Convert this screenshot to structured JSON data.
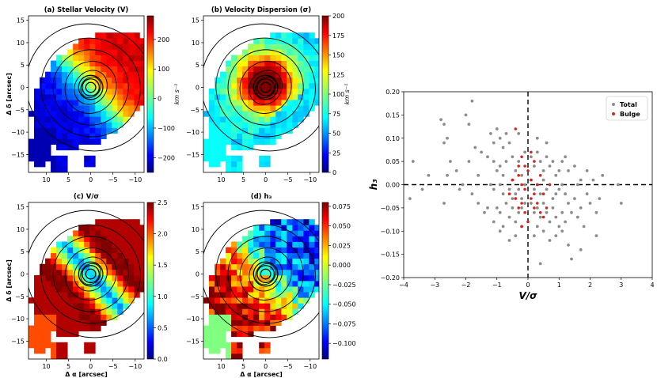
{
  "chart_data": [
    {
      "type": "heatmap",
      "title": "(a) Stellar Velocity (V)",
      "xlabel": "",
      "ylabel": "Δ δ [arcsec]",
      "xlim": [
        14,
        -12
      ],
      "ylim": [
        -19,
        16
      ],
      "xticks": [
        10,
        5,
        0,
        -5,
        -10
      ],
      "yticks": [
        15,
        10,
        5,
        0,
        -5,
        -10,
        -15
      ],
      "colormap": "jet",
      "colorbar": {
        "min": -250,
        "max": 280,
        "ticks": [
          200,
          100,
          0,
          -100,
          -200
        ],
        "label": "km s⁻¹"
      }
    },
    {
      "type": "heatmap",
      "title": "(b) Velocity Dispersion (σ)",
      "xlabel": "",
      "ylabel": "",
      "xlim": [
        14,
        -12
      ],
      "ylim": [
        -19,
        16
      ],
      "xticks": [
        10,
        5,
        0,
        -5,
        -10
      ],
      "yticks": [
        15,
        10,
        5,
        0,
        -5,
        -10,
        -15
      ],
      "colormap": "jet",
      "colorbar": {
        "min": 0,
        "max": 200,
        "ticks": [
          200,
          175,
          150,
          125,
          100,
          75,
          50,
          25,
          0
        ],
        "label": "km s⁻¹"
      }
    },
    {
      "type": "heatmap",
      "title": "(c) V/σ",
      "xlabel": "Δ α [arcsec]",
      "ylabel": "Δ δ [arcsec]",
      "xlim": [
        14,
        -12
      ],
      "ylim": [
        -19,
        16
      ],
      "xticks": [
        10,
        5,
        0,
        -5,
        -10
      ],
      "yticks": [
        15,
        10,
        5,
        0,
        -5,
        -10,
        -15
      ],
      "colormap": "jet",
      "colorbar": {
        "min": 0,
        "max": 2.5,
        "ticks": [
          "2.5",
          "2.0",
          "1.5",
          "1.0",
          "0.5",
          "0.0"
        ],
        "label": ""
      }
    },
    {
      "type": "heatmap",
      "title": "(d) h₃",
      "xlabel": "Δ α [arcsec]",
      "ylabel": "",
      "xlim": [
        14,
        -12
      ],
      "ylim": [
        -19,
        16
      ],
      "xticks": [
        10,
        5,
        0,
        -5,
        -10
      ],
      "yticks": [
        15,
        10,
        5,
        0,
        -5,
        -10,
        -15
      ],
      "colormap": "jet",
      "colorbar": {
        "min": -0.12,
        "max": 0.08,
        "ticks": [
          "0.075",
          "0.050",
          "0.025",
          "0.000",
          "−0.025",
          "−0.050",
          "−0.075",
          "−0.100"
        ],
        "label": ""
      }
    },
    {
      "type": "scatter",
      "title": "",
      "xlabel": "V/σ",
      "ylabel": "h₃",
      "xlim": [
        -4,
        4
      ],
      "ylim": [
        -0.2,
        0.2
      ],
      "xticks": [
        "−4",
        "−3",
        "−2",
        "−1",
        "0",
        "1",
        "2",
        "3",
        "4"
      ],
      "yticks": [
        "0.20",
        "0.15",
        "0.10",
        "0.05",
        "0.00",
        "−0.05",
        "−0.10",
        "−0.15",
        "−0.20"
      ],
      "reference_lines": {
        "x": 0,
        "y": 0
      },
      "legend": {
        "position": "top-right",
        "entries": [
          "Total",
          "Bulge"
        ]
      },
      "series": [
        {
          "name": "Total",
          "color": "#8c8c8c",
          "points": [
            [
              -3.7,
              0.05
            ],
            [
              -3.8,
              -0.03
            ],
            [
              -3.4,
              -0.01
            ],
            [
              -2.8,
              0.14
            ],
            [
              -2.7,
              0.13
            ],
            [
              -2.6,
              0.1
            ],
            [
              -2.7,
              0.09
            ],
            [
              -2.5,
              0.05
            ],
            [
              -2.6,
              0.02
            ],
            [
              -2.7,
              -0.04
            ],
            [
              -2.0,
              0.15
            ],
            [
              -1.8,
              0.18
            ],
            [
              -1.9,
              0.13
            ],
            [
              -1.7,
              0.08
            ],
            [
              -1.9,
              0.05
            ],
            [
              -1.6,
              0.02
            ],
            [
              -2.1,
              0.0
            ],
            [
              -1.8,
              -0.02
            ],
            [
              -1.6,
              -0.04
            ],
            [
              -1.2,
              0.11
            ],
            [
              -1.1,
              0.09
            ],
            [
              -1.0,
              0.12
            ],
            [
              -0.9,
              0.1
            ],
            [
              -0.8,
              0.08
            ],
            [
              -0.7,
              0.11
            ],
            [
              -0.6,
              0.09
            ],
            [
              -1.3,
              0.06
            ],
            [
              -1.1,
              0.05
            ],
            [
              -1.0,
              0.03
            ],
            [
              -0.9,
              0.04
            ],
            [
              -0.8,
              0.02
            ],
            [
              -0.7,
              0.05
            ],
            [
              -0.5,
              0.06
            ],
            [
              -0.4,
              0.03
            ],
            [
              -0.3,
              0.05
            ],
            [
              -0.2,
              0.02
            ],
            [
              -1.2,
              0.0
            ],
            [
              -1.1,
              -0.01
            ],
            [
              -0.9,
              0.0
            ],
            [
              -0.8,
              -0.02
            ],
            [
              -0.6,
              -0.01
            ],
            [
              -0.5,
              0.01
            ],
            [
              -0.4,
              -0.02
            ],
            [
              -0.3,
              -0.01
            ],
            [
              -0.2,
              -0.03
            ],
            [
              -1.3,
              -0.05
            ],
            [
              -1.0,
              -0.05
            ],
            [
              -0.9,
              -0.06
            ],
            [
              -0.7,
              -0.04
            ],
            [
              -0.6,
              -0.07
            ],
            [
              -0.5,
              -0.05
            ],
            [
              -0.4,
              -0.08
            ],
            [
              -0.3,
              -0.06
            ],
            [
              -0.2,
              -0.09
            ],
            [
              -1.1,
              -0.08
            ],
            [
              -0.8,
              -0.09
            ],
            [
              -0.6,
              -0.12
            ],
            [
              -0.4,
              -0.11
            ],
            [
              -0.2,
              -0.05
            ],
            [
              -0.1,
              0.07
            ],
            [
              -0.1,
              0.0
            ],
            [
              -0.1,
              -0.04
            ],
            [
              0.1,
              0.06
            ],
            [
              0.2,
              0.04
            ],
            [
              0.3,
              0.07
            ],
            [
              0.4,
              0.05
            ],
            [
              0.5,
              0.03
            ],
            [
              0.6,
              0.06
            ],
            [
              0.7,
              0.04
            ],
            [
              0.8,
              0.05
            ],
            [
              0.9,
              0.02
            ],
            [
              1.0,
              0.03
            ],
            [
              0.1,
              0.01
            ],
            [
              0.2,
              -0.01
            ],
            [
              0.3,
              0.0
            ],
            [
              0.4,
              -0.02
            ],
            [
              0.5,
              0.01
            ],
            [
              0.6,
              -0.01
            ],
            [
              0.7,
              0.0
            ],
            [
              0.8,
              -0.03
            ],
            [
              0.9,
              -0.02
            ],
            [
              1.0,
              -0.01
            ],
            [
              1.1,
              0.0
            ],
            [
              1.2,
              -0.02
            ],
            [
              0.1,
              -0.04
            ],
            [
              0.2,
              -0.06
            ],
            [
              0.3,
              -0.05
            ],
            [
              0.4,
              -0.07
            ],
            [
              0.5,
              -0.04
            ],
            [
              0.6,
              -0.06
            ],
            [
              0.7,
              -0.08
            ],
            [
              0.8,
              -0.05
            ],
            [
              0.9,
              -0.07
            ],
            [
              1.0,
              -0.09
            ],
            [
              1.1,
              -0.06
            ],
            [
              1.2,
              -0.08
            ],
            [
              1.3,
              -0.04
            ],
            [
              1.4,
              -0.06
            ],
            [
              1.5,
              -0.03
            ],
            [
              1.6,
              -0.07
            ],
            [
              1.7,
              -0.05
            ],
            [
              1.8,
              -0.09
            ],
            [
              1.9,
              -0.02
            ],
            [
              2.0,
              -0.04
            ],
            [
              2.2,
              -0.06
            ],
            [
              2.3,
              -0.03
            ],
            [
              2.4,
              0.02
            ],
            [
              2.9,
              0.0
            ],
            [
              1.1,
              0.05
            ],
            [
              1.3,
              0.03
            ],
            [
              1.5,
              0.04
            ],
            [
              1.7,
              0.01
            ],
            [
              1.9,
              0.03
            ],
            [
              2.1,
              0.01
            ],
            [
              0.5,
              -0.1
            ],
            [
              0.7,
              -0.12
            ],
            [
              0.9,
              -0.11
            ],
            [
              1.1,
              -0.1
            ],
            [
              1.3,
              -0.13
            ],
            [
              1.4,
              -0.16
            ],
            [
              1.7,
              -0.14
            ],
            [
              2.2,
              -0.11
            ],
            [
              3.0,
              -0.04
            ],
            [
              0.4,
              -0.17
            ],
            [
              0.2,
              -0.11
            ],
            [
              0.3,
              0.1
            ],
            [
              -0.3,
              0.11
            ],
            [
              -1.5,
              0.07
            ],
            [
              -2.3,
              0.03
            ],
            [
              -3.2,
              0.02
            ],
            [
              -2.2,
              -0.01
            ],
            [
              -1.4,
              -0.06
            ],
            [
              -0.9,
              -0.1
            ],
            [
              0.6,
              0.09
            ],
            [
              1.2,
              0.06
            ],
            [
              0.3,
              -0.09
            ],
            [
              -0.5,
              -0.03
            ],
            [
              1.6,
              0.0
            ]
          ]
        },
        {
          "name": "Bulge",
          "color": "#d6261c",
          "points": [
            [
              -0.4,
              0.12
            ],
            [
              -0.2,
              0.06
            ],
            [
              -0.1,
              0.04
            ],
            [
              0.1,
              0.07
            ],
            [
              0.2,
              0.05
            ],
            [
              0.0,
              0.03
            ],
            [
              -0.3,
              0.02
            ],
            [
              -0.2,
              0.0
            ],
            [
              -0.1,
              -0.01
            ],
            [
              0.1,
              0.01
            ],
            [
              0.2,
              -0.02
            ],
            [
              0.3,
              0.0
            ],
            [
              -0.4,
              -0.03
            ],
            [
              -0.3,
              -0.05
            ],
            [
              -0.2,
              -0.04
            ],
            [
              -0.1,
              -0.06
            ],
            [
              0.1,
              -0.03
            ],
            [
              0.2,
              -0.05
            ],
            [
              0.3,
              -0.04
            ],
            [
              0.4,
              -0.06
            ],
            [
              0.5,
              -0.02
            ],
            [
              0.6,
              -0.05
            ],
            [
              0.5,
              -0.07
            ],
            [
              -0.5,
              0.01
            ],
            [
              -0.6,
              -0.02
            ],
            [
              0.4,
              0.02
            ],
            [
              0.0,
              -0.08
            ],
            [
              -0.2,
              -0.09
            ],
            [
              0.7,
              0.0
            ],
            [
              -0.3,
              0.04
            ]
          ]
        }
      ]
    }
  ]
}
